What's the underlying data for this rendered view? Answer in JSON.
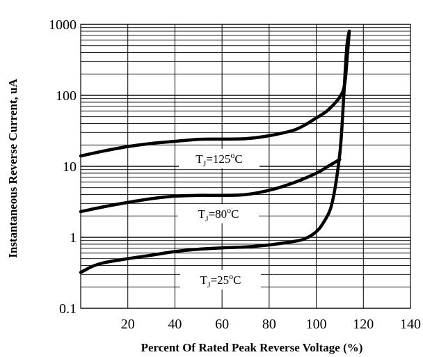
{
  "chart_data": {
    "type": "line",
    "title": "",
    "xlabel": "Percent Of Rated Peak Reverse Voltage (%)",
    "ylabel": "Instantaneous Reverse Current, uA",
    "xlim": [
      0,
      140
    ],
    "ylim": [
      0.1,
      1000
    ],
    "yscale": "log",
    "x_ticks": [
      20,
      40,
      60,
      80,
      100,
      120,
      140
    ],
    "x_tick_labels": [
      "20",
      "40",
      "60",
      "80",
      "100",
      "120",
      "140"
    ],
    "y_ticks": [
      0.1,
      1,
      10,
      100,
      1000
    ],
    "y_tick_labels": [
      "0.1",
      "1",
      "10",
      "100",
      "1000"
    ],
    "grid": true,
    "series": [
      {
        "name": "TJ=125°C",
        "label": {
          "main": "T",
          "sub": "J",
          "mid": "=125",
          "sup": "o",
          "end": "C"
        },
        "x": [
          0,
          10,
          20,
          30,
          40,
          50,
          60,
          70,
          80,
          90,
          95,
          100,
          105,
          110,
          112,
          113,
          114
        ],
        "y": [
          14,
          16.5,
          19,
          21,
          22.5,
          24,
          24.2,
          24.5,
          27,
          32,
          38,
          48,
          62,
          95,
          140,
          300,
          800
        ]
      },
      {
        "name": "TJ=80°C",
        "label": {
          "main": "T",
          "sub": "J",
          "mid": "=80",
          "sup": "o",
          "end": "C"
        },
        "x": [
          0,
          10,
          20,
          30,
          40,
          50,
          60,
          70,
          80,
          90,
          100,
          105,
          110
        ],
        "y": [
          2.3,
          2.7,
          3.1,
          3.5,
          3.8,
          3.9,
          3.9,
          4.0,
          4.6,
          5.8,
          8.0,
          10,
          12.5
        ]
      },
      {
        "name": "TJ=25°C",
        "label": {
          "main": "T",
          "sub": "J",
          "mid": "=25",
          "sup": "o",
          "end": "C"
        },
        "x": [
          0,
          5,
          10,
          20,
          30,
          40,
          50,
          60,
          70,
          80,
          90,
          95,
          100,
          103,
          106,
          108,
          110,
          111,
          112,
          113,
          114
        ],
        "y": [
          0.32,
          0.39,
          0.44,
          0.5,
          0.56,
          0.63,
          0.68,
          0.71,
          0.73,
          0.78,
          0.87,
          0.95,
          1.2,
          1.6,
          2.5,
          5,
          15,
          40,
          150,
          500,
          800
        ]
      }
    ]
  }
}
